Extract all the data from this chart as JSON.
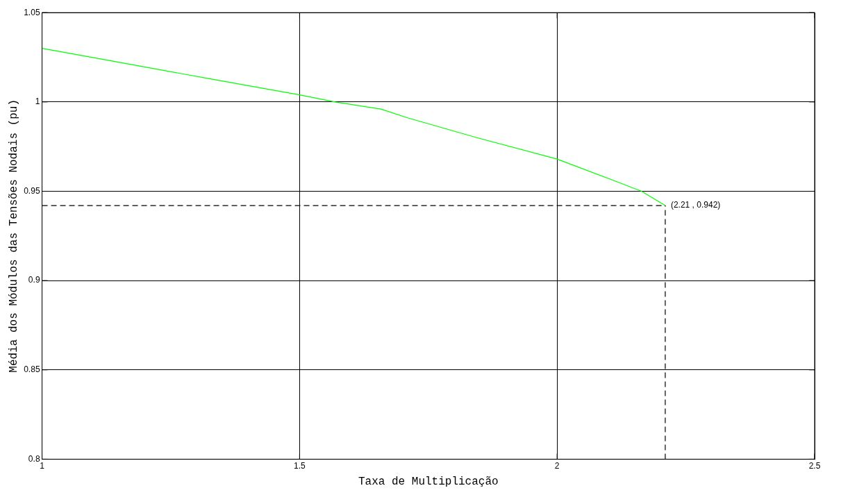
{
  "chart_data": {
    "type": "line",
    "xlabel": "Taxa de Multiplicação",
    "ylabel": "Média dos Módulos das Tensões Nodais (pu)",
    "series": [
      {
        "color": "#00ff00",
        "x": [
          1,
          1.134,
          1.325,
          1.5,
          1.569,
          1.658,
          1.711,
          1.844,
          2,
          2.11,
          2.164,
          2.21
        ],
        "values": [
          1.03,
          1.023,
          1.013,
          1.004,
          1.0,
          0.996,
          0.991,
          0.98,
          0.968,
          0.956,
          0.95,
          0.942
        ]
      }
    ],
    "xlim": [
      1,
      2.5
    ],
    "xticks": [
      1,
      1.5,
      2,
      2.5
    ],
    "ylim": [
      0.8,
      1.05
    ],
    "yticks": [
      0.8,
      0.85,
      0.9,
      0.95,
      1,
      1.05
    ],
    "grid": true,
    "legend": false,
    "marker": "none",
    "line_style": "solid",
    "ref_lines": [
      {
        "axis": "y",
        "value": 0.942,
        "line_style": "dashed",
        "color": "#000000"
      },
      {
        "axis": "x",
        "value": 2.21,
        "line_style": "dashed",
        "color": "#000000"
      }
    ],
    "annotations": [
      {
        "text": "(2.21 , 0.942)",
        "x": 2.21,
        "y": 0.942
      }
    ]
  }
}
